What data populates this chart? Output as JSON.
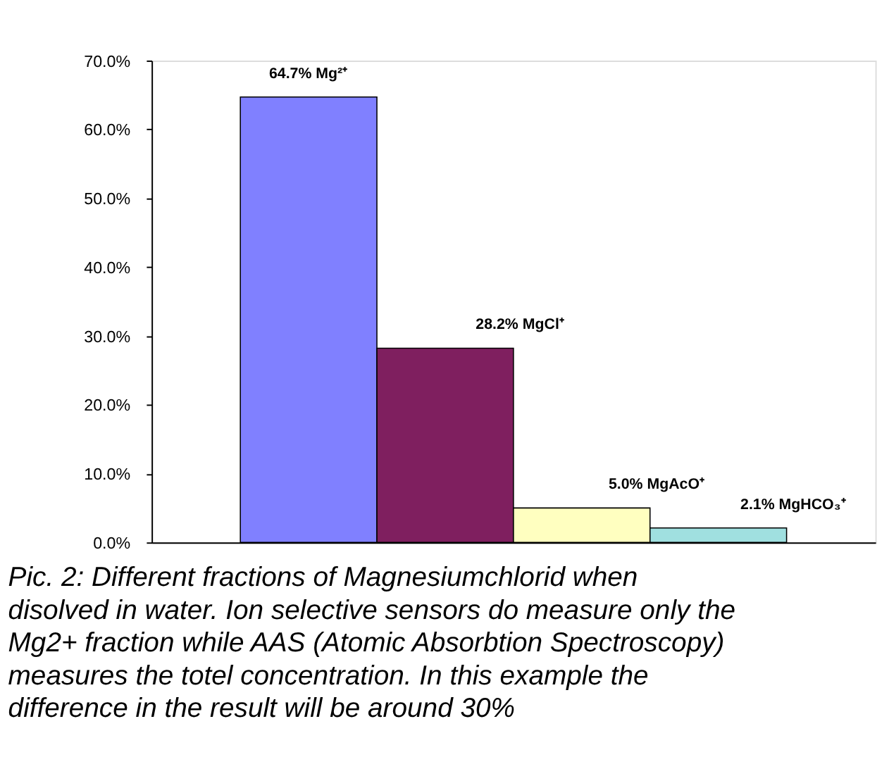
{
  "chart_data": {
    "type": "bar",
    "categories": [
      null,
      null,
      null,
      null
    ],
    "values": [
      64.7,
      28.2,
      5.0,
      2.1
    ],
    "colors": [
      "#8080ff",
      "#7f1f5f",
      "#ffffc0",
      "#a0e0e0"
    ],
    "value_labels": [
      "64.7% Mg²⁺",
      "28.2% MgCl⁺",
      "5.0% MgAcO⁺",
      "2.1% MgHCO₃⁺"
    ],
    "ylim": [
      0,
      70
    ],
    "yticks": [
      {
        "value": 0,
        "label": "0.0%"
      },
      {
        "value": 10,
        "label": "10.0%"
      },
      {
        "value": 20,
        "label": "20.0%"
      },
      {
        "value": 30,
        "label": "30.0%"
      },
      {
        "value": 40,
        "label": "40.0%"
      },
      {
        "value": 50,
        "label": "50.0%"
      },
      {
        "value": 60,
        "label": "60.0%"
      },
      {
        "value": 70,
        "label": "70.0%"
      }
    ],
    "grid": false,
    "annotations": [
      "Pic. 2: Different fractions of Magnesiumchlorid when disolved in water. Ion selective sensors do measure only the Mg2+ fraction while AAS (Atomic Absorbtion Spectroscopy) measures the totel concentration. In this example the difference in the result will be around 30%"
    ]
  }
}
